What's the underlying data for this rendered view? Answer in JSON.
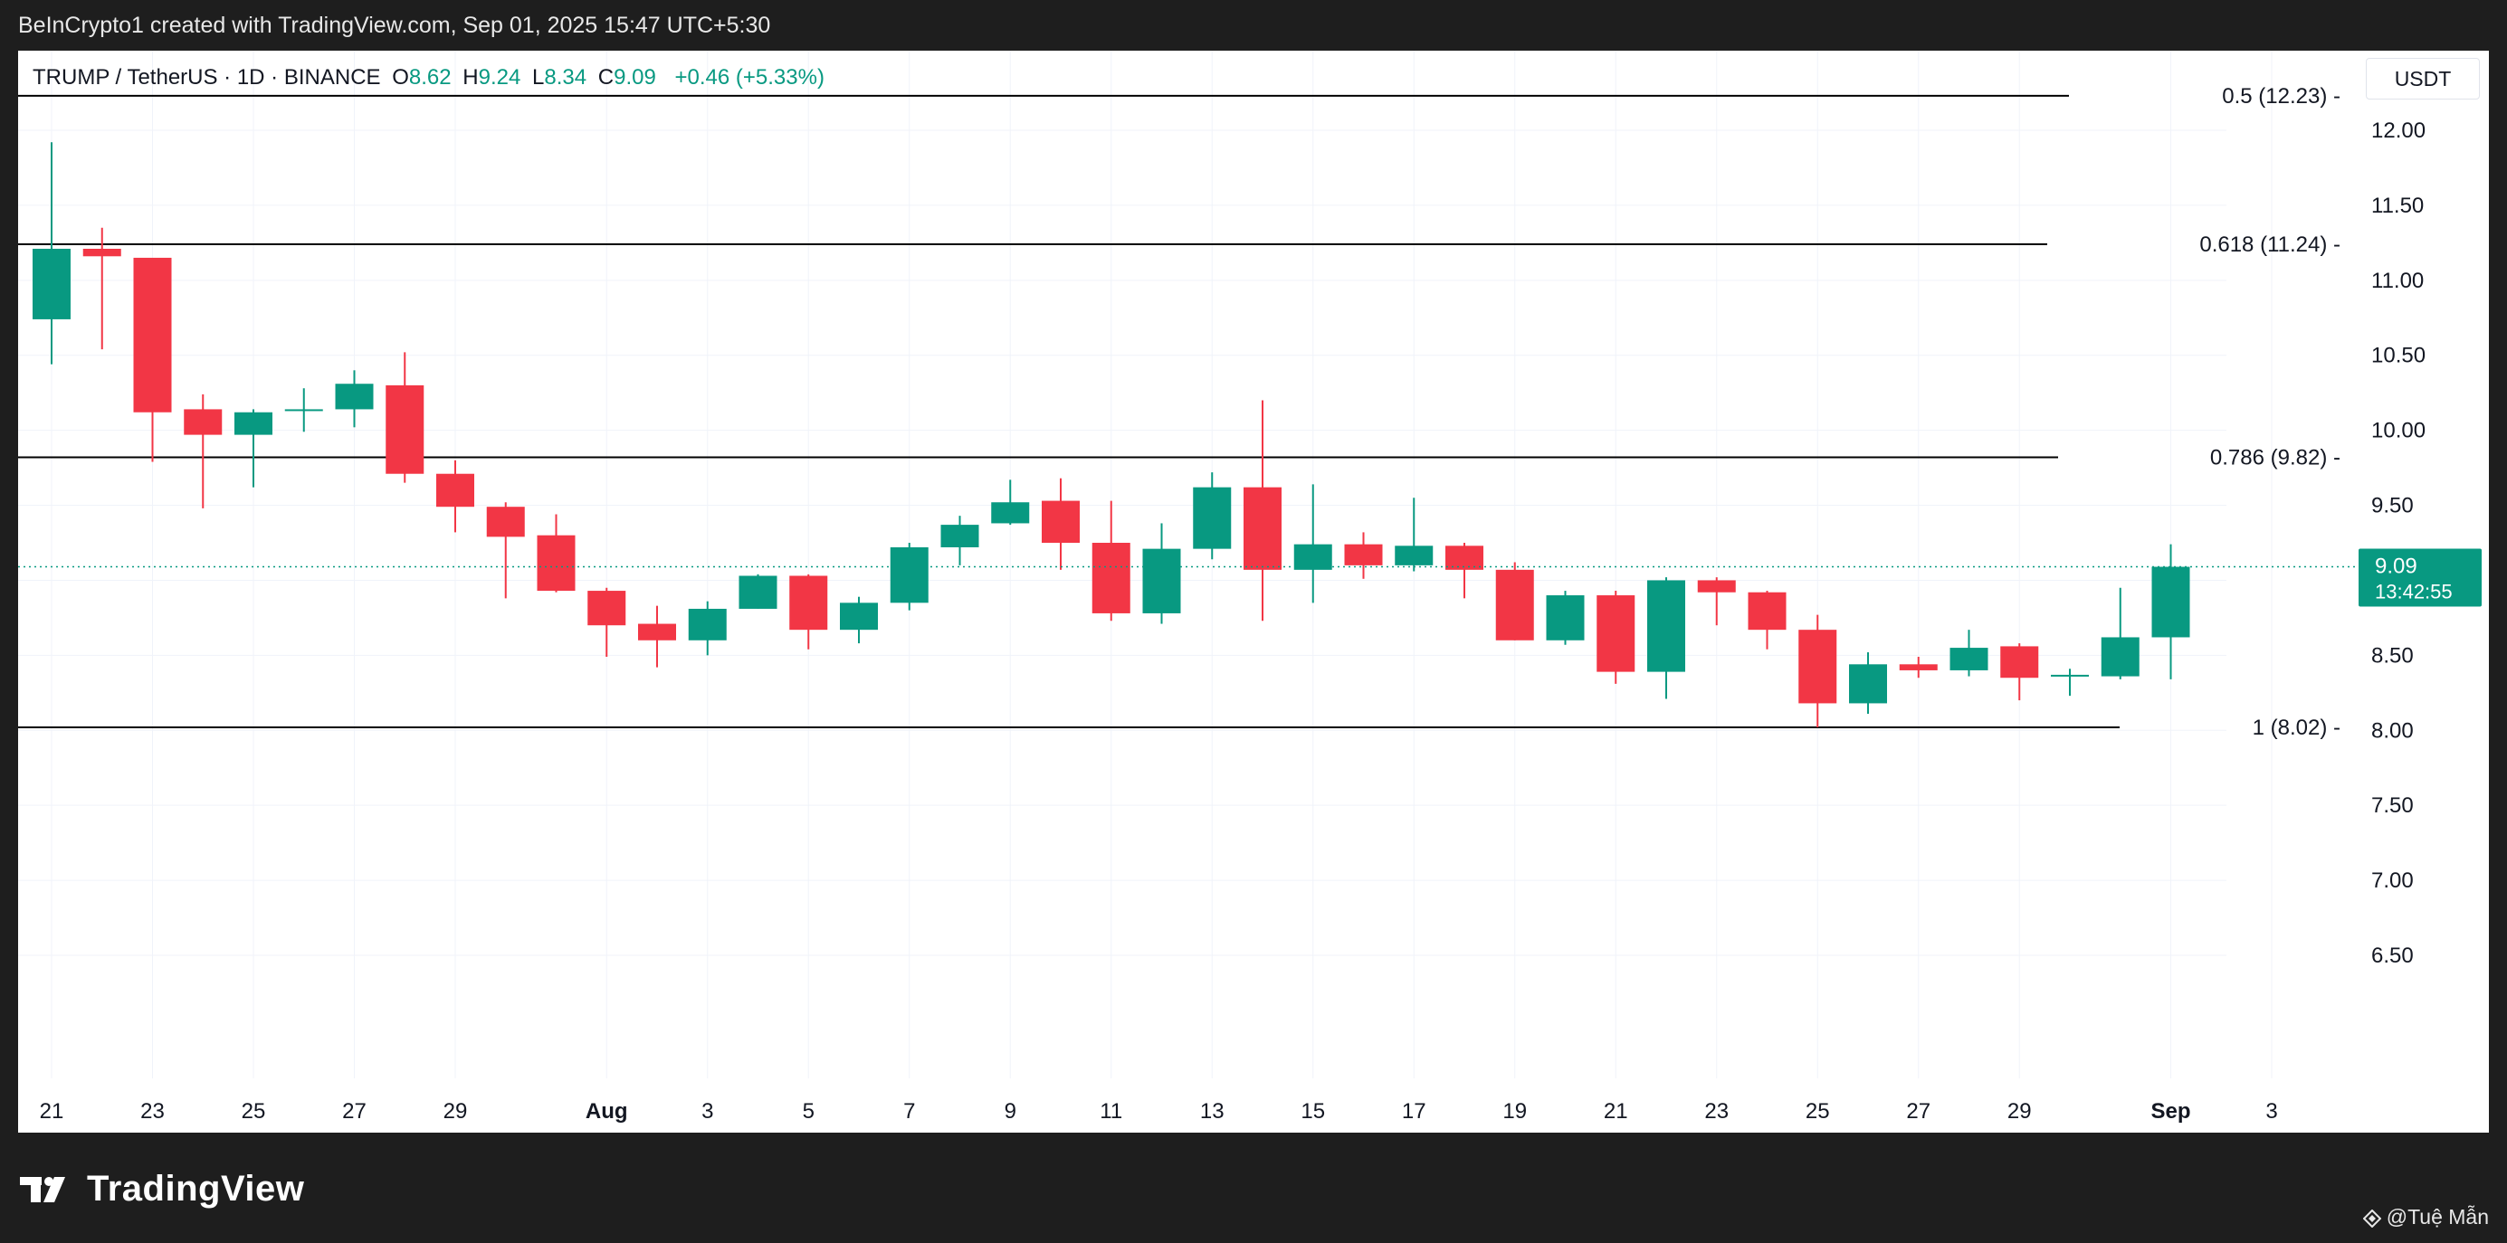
{
  "header": {
    "credit": "BeInCrypto1 created with TradingView.com, Sep 01, 2025 15:47 UTC+5:30"
  },
  "legend": {
    "symbol": "TRUMP / TetherUS · 1D · BINANCE",
    "o_label": "O",
    "o_value": "8.62",
    "h_label": "H",
    "h_value": "9.24",
    "l_label": "L",
    "l_value": "8.34",
    "c_label": "C",
    "c_value": "9.09",
    "change": "+0.46 (+5.33%)"
  },
  "price_axis": {
    "unit": "USDT"
  },
  "last_price": {
    "price": "9.09",
    "countdown": "13:42:55"
  },
  "footer": {
    "brand": "TradingView",
    "watermark": "@Tuệ Mẫn"
  },
  "colors": {
    "up": "#089981",
    "down": "#f23645",
    "grid": "#f0f3fa",
    "level": "#000000",
    "background": "#ffffff"
  },
  "chart_data": {
    "type": "candlestick",
    "title": "TRUMP / TetherUS · 1D · BINANCE",
    "ylim": [
      6.1,
      12.3
    ],
    "y_ticks": [
      "12.00",
      "11.50",
      "11.00",
      "10.50",
      "10.00",
      "9.50",
      "9.00",
      "8.50",
      "8.00",
      "7.50",
      "7.00",
      "6.50"
    ],
    "x_ticks": [
      "21",
      "23",
      "25",
      "27",
      "29",
      "Aug",
      "3",
      "5",
      "7",
      "9",
      "11",
      "13",
      "15",
      "17",
      "19",
      "21",
      "23",
      "25",
      "27",
      "29",
      "Sep",
      "3"
    ],
    "bold_ticks": [
      "Aug",
      "Sep"
    ],
    "grid": true,
    "fib_levels": [
      {
        "label": "0.5 (12.23)",
        "value": 12.23
      },
      {
        "label": "0.618 (11.24)",
        "value": 11.24
      },
      {
        "label": "0.786 (9.82)",
        "value": 9.82
      },
      {
        "label": "1 (8.02)",
        "value": 8.02
      }
    ],
    "candles": [
      {
        "date": "2025-07-21",
        "open": 10.74,
        "high": 11.92,
        "low": 10.44,
        "close": 11.21
      },
      {
        "date": "2025-07-22",
        "open": 11.21,
        "high": 11.35,
        "low": 10.54,
        "close": 11.16
      },
      {
        "date": "2025-07-23",
        "open": 11.15,
        "high": 11.15,
        "low": 9.79,
        "close": 10.12
      },
      {
        "date": "2025-07-24",
        "open": 10.14,
        "high": 10.24,
        "low": 9.48,
        "close": 9.97
      },
      {
        "date": "2025-07-25",
        "open": 9.97,
        "high": 10.14,
        "low": 9.62,
        "close": 10.12
      },
      {
        "date": "2025-07-26",
        "open": 10.13,
        "high": 10.28,
        "low": 9.99,
        "close": 10.14
      },
      {
        "date": "2025-07-27",
        "open": 10.14,
        "high": 10.4,
        "low": 10.02,
        "close": 10.31
      },
      {
        "date": "2025-07-28",
        "open": 10.3,
        "high": 10.52,
        "low": 9.65,
        "close": 9.71
      },
      {
        "date": "2025-07-29",
        "open": 9.71,
        "high": 9.8,
        "low": 9.32,
        "close": 9.49
      },
      {
        "date": "2025-07-30",
        "open": 9.49,
        "high": 9.52,
        "low": 8.88,
        "close": 9.29
      },
      {
        "date": "2025-07-31",
        "open": 9.3,
        "high": 9.44,
        "low": 8.92,
        "close": 8.93
      },
      {
        "date": "2025-08-01",
        "open": 8.93,
        "high": 8.95,
        "low": 8.49,
        "close": 8.7
      },
      {
        "date": "2025-08-02",
        "open": 8.71,
        "high": 8.83,
        "low": 8.42,
        "close": 8.6
      },
      {
        "date": "2025-08-03",
        "open": 8.6,
        "high": 8.86,
        "low": 8.5,
        "close": 8.81
      },
      {
        "date": "2025-08-04",
        "open": 8.81,
        "high": 9.04,
        "low": 8.81,
        "close": 9.03
      },
      {
        "date": "2025-08-05",
        "open": 9.03,
        "high": 9.04,
        "low": 8.54,
        "close": 8.67
      },
      {
        "date": "2025-08-06",
        "open": 8.67,
        "high": 8.89,
        "low": 8.58,
        "close": 8.85
      },
      {
        "date": "2025-08-07",
        "open": 8.85,
        "high": 9.25,
        "low": 8.8,
        "close": 9.22
      },
      {
        "date": "2025-08-08",
        "open": 9.22,
        "high": 9.43,
        "low": 9.1,
        "close": 9.37
      },
      {
        "date": "2025-08-09",
        "open": 9.38,
        "high": 9.67,
        "low": 9.37,
        "close": 9.52
      },
      {
        "date": "2025-08-10",
        "open": 9.53,
        "high": 9.68,
        "low": 9.07,
        "close": 9.25
      },
      {
        "date": "2025-08-11",
        "open": 9.25,
        "high": 9.53,
        "low": 8.73,
        "close": 8.78
      },
      {
        "date": "2025-08-12",
        "open": 8.78,
        "high": 9.38,
        "low": 8.71,
        "close": 9.21
      },
      {
        "date": "2025-08-13",
        "open": 9.21,
        "high": 9.72,
        "low": 9.14,
        "close": 9.62
      },
      {
        "date": "2025-08-14",
        "open": 9.62,
        "high": 10.2,
        "low": 8.73,
        "close": 9.07
      },
      {
        "date": "2025-08-15",
        "open": 9.07,
        "high": 9.64,
        "low": 8.85,
        "close": 9.24
      },
      {
        "date": "2025-08-16",
        "open": 9.24,
        "high": 9.32,
        "low": 9.01,
        "close": 9.1
      },
      {
        "date": "2025-08-17",
        "open": 9.1,
        "high": 9.55,
        "low": 9.06,
        "close": 9.23
      },
      {
        "date": "2025-08-18",
        "open": 9.23,
        "high": 9.25,
        "low": 8.88,
        "close": 9.07
      },
      {
        "date": "2025-08-19",
        "open": 9.07,
        "high": 9.12,
        "low": 8.6,
        "close": 8.6
      },
      {
        "date": "2025-08-20",
        "open": 8.6,
        "high": 8.93,
        "low": 8.57,
        "close": 8.9
      },
      {
        "date": "2025-08-21",
        "open": 8.9,
        "high": 8.93,
        "low": 8.31,
        "close": 8.39
      },
      {
        "date": "2025-08-22",
        "open": 8.39,
        "high": 9.02,
        "low": 8.21,
        "close": 9.0
      },
      {
        "date": "2025-08-23",
        "open": 9.0,
        "high": 9.02,
        "low": 8.7,
        "close": 8.92
      },
      {
        "date": "2025-08-24",
        "open": 8.92,
        "high": 8.93,
        "low": 8.54,
        "close": 8.67
      },
      {
        "date": "2025-08-25",
        "open": 8.67,
        "high": 8.77,
        "low": 8.02,
        "close": 8.18
      },
      {
        "date": "2025-08-26",
        "open": 8.18,
        "high": 8.52,
        "low": 8.11,
        "close": 8.44
      },
      {
        "date": "2025-08-27",
        "open": 8.44,
        "high": 8.49,
        "low": 8.35,
        "close": 8.4
      },
      {
        "date": "2025-08-28",
        "open": 8.4,
        "high": 8.67,
        "low": 8.36,
        "close": 8.55
      },
      {
        "date": "2025-08-29",
        "open": 8.56,
        "high": 8.58,
        "low": 8.2,
        "close": 8.35
      },
      {
        "date": "2025-08-30",
        "open": 8.36,
        "high": 8.41,
        "low": 8.23,
        "close": 8.37
      },
      {
        "date": "2025-08-31",
        "open": 8.36,
        "high": 8.95,
        "low": 8.34,
        "close": 8.62
      },
      {
        "date": "2025-09-01",
        "open": 8.62,
        "high": 9.24,
        "low": 8.34,
        "close": 9.09
      }
    ]
  }
}
